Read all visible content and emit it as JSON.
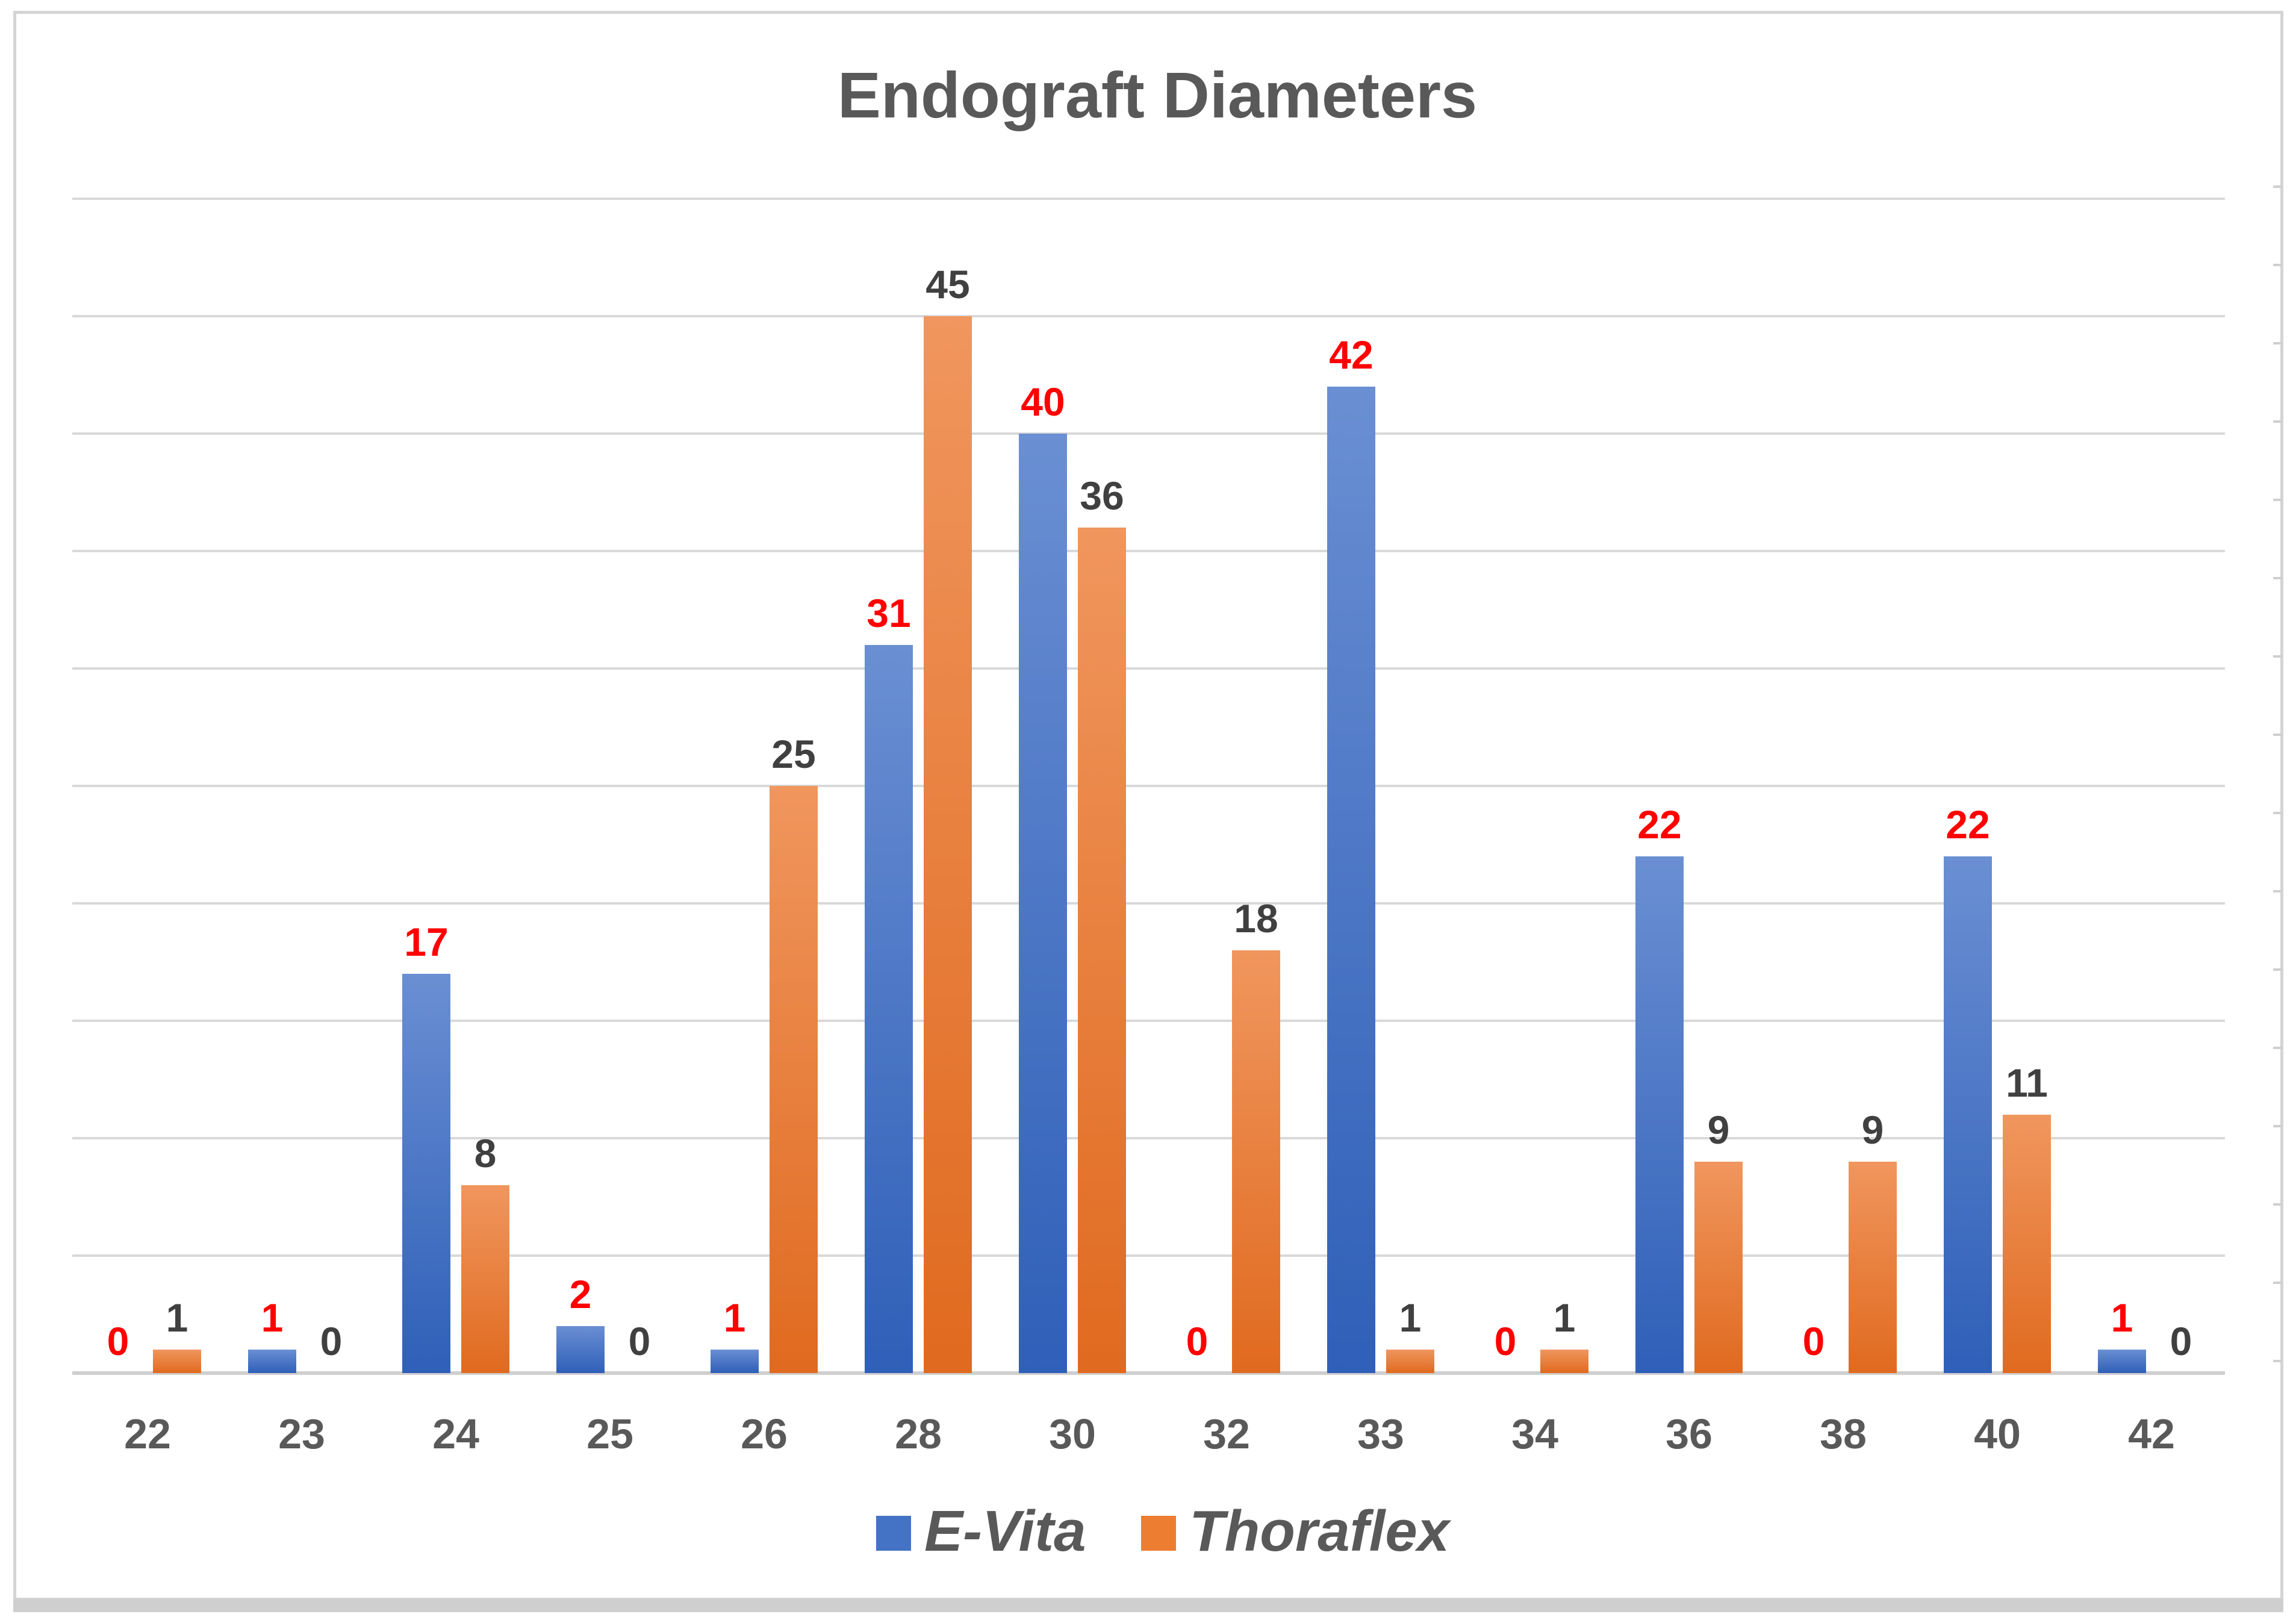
{
  "chart_data": {
    "type": "bar",
    "title": "Endograft Diameters",
    "xlabel": "",
    "ylabel": "",
    "categories": [
      "22",
      "23",
      "24",
      "25",
      "26",
      "28",
      "30",
      "32",
      "33",
      "34",
      "36",
      "38",
      "40",
      "42"
    ],
    "series": [
      {
        "name": "E-Vita",
        "color": "#4472C4",
        "label_color": "#FF0000",
        "values": [
          0,
          1,
          17,
          2,
          1,
          31,
          40,
          0,
          42,
          0,
          22,
          0,
          22,
          1
        ]
      },
      {
        "name": "Thoraflex",
        "color": "#ED7D31",
        "label_color": "#404040",
        "values": [
          1,
          0,
          8,
          0,
          25,
          45,
          36,
          18,
          1,
          1,
          9,
          9,
          11,
          0
        ]
      }
    ],
    "ylim": [
      0,
      50
    ],
    "gridlines": [
      5,
      10,
      15,
      20,
      25,
      30,
      35,
      40,
      45,
      50
    ],
    "grid": true,
    "legend_position": "bottom"
  }
}
